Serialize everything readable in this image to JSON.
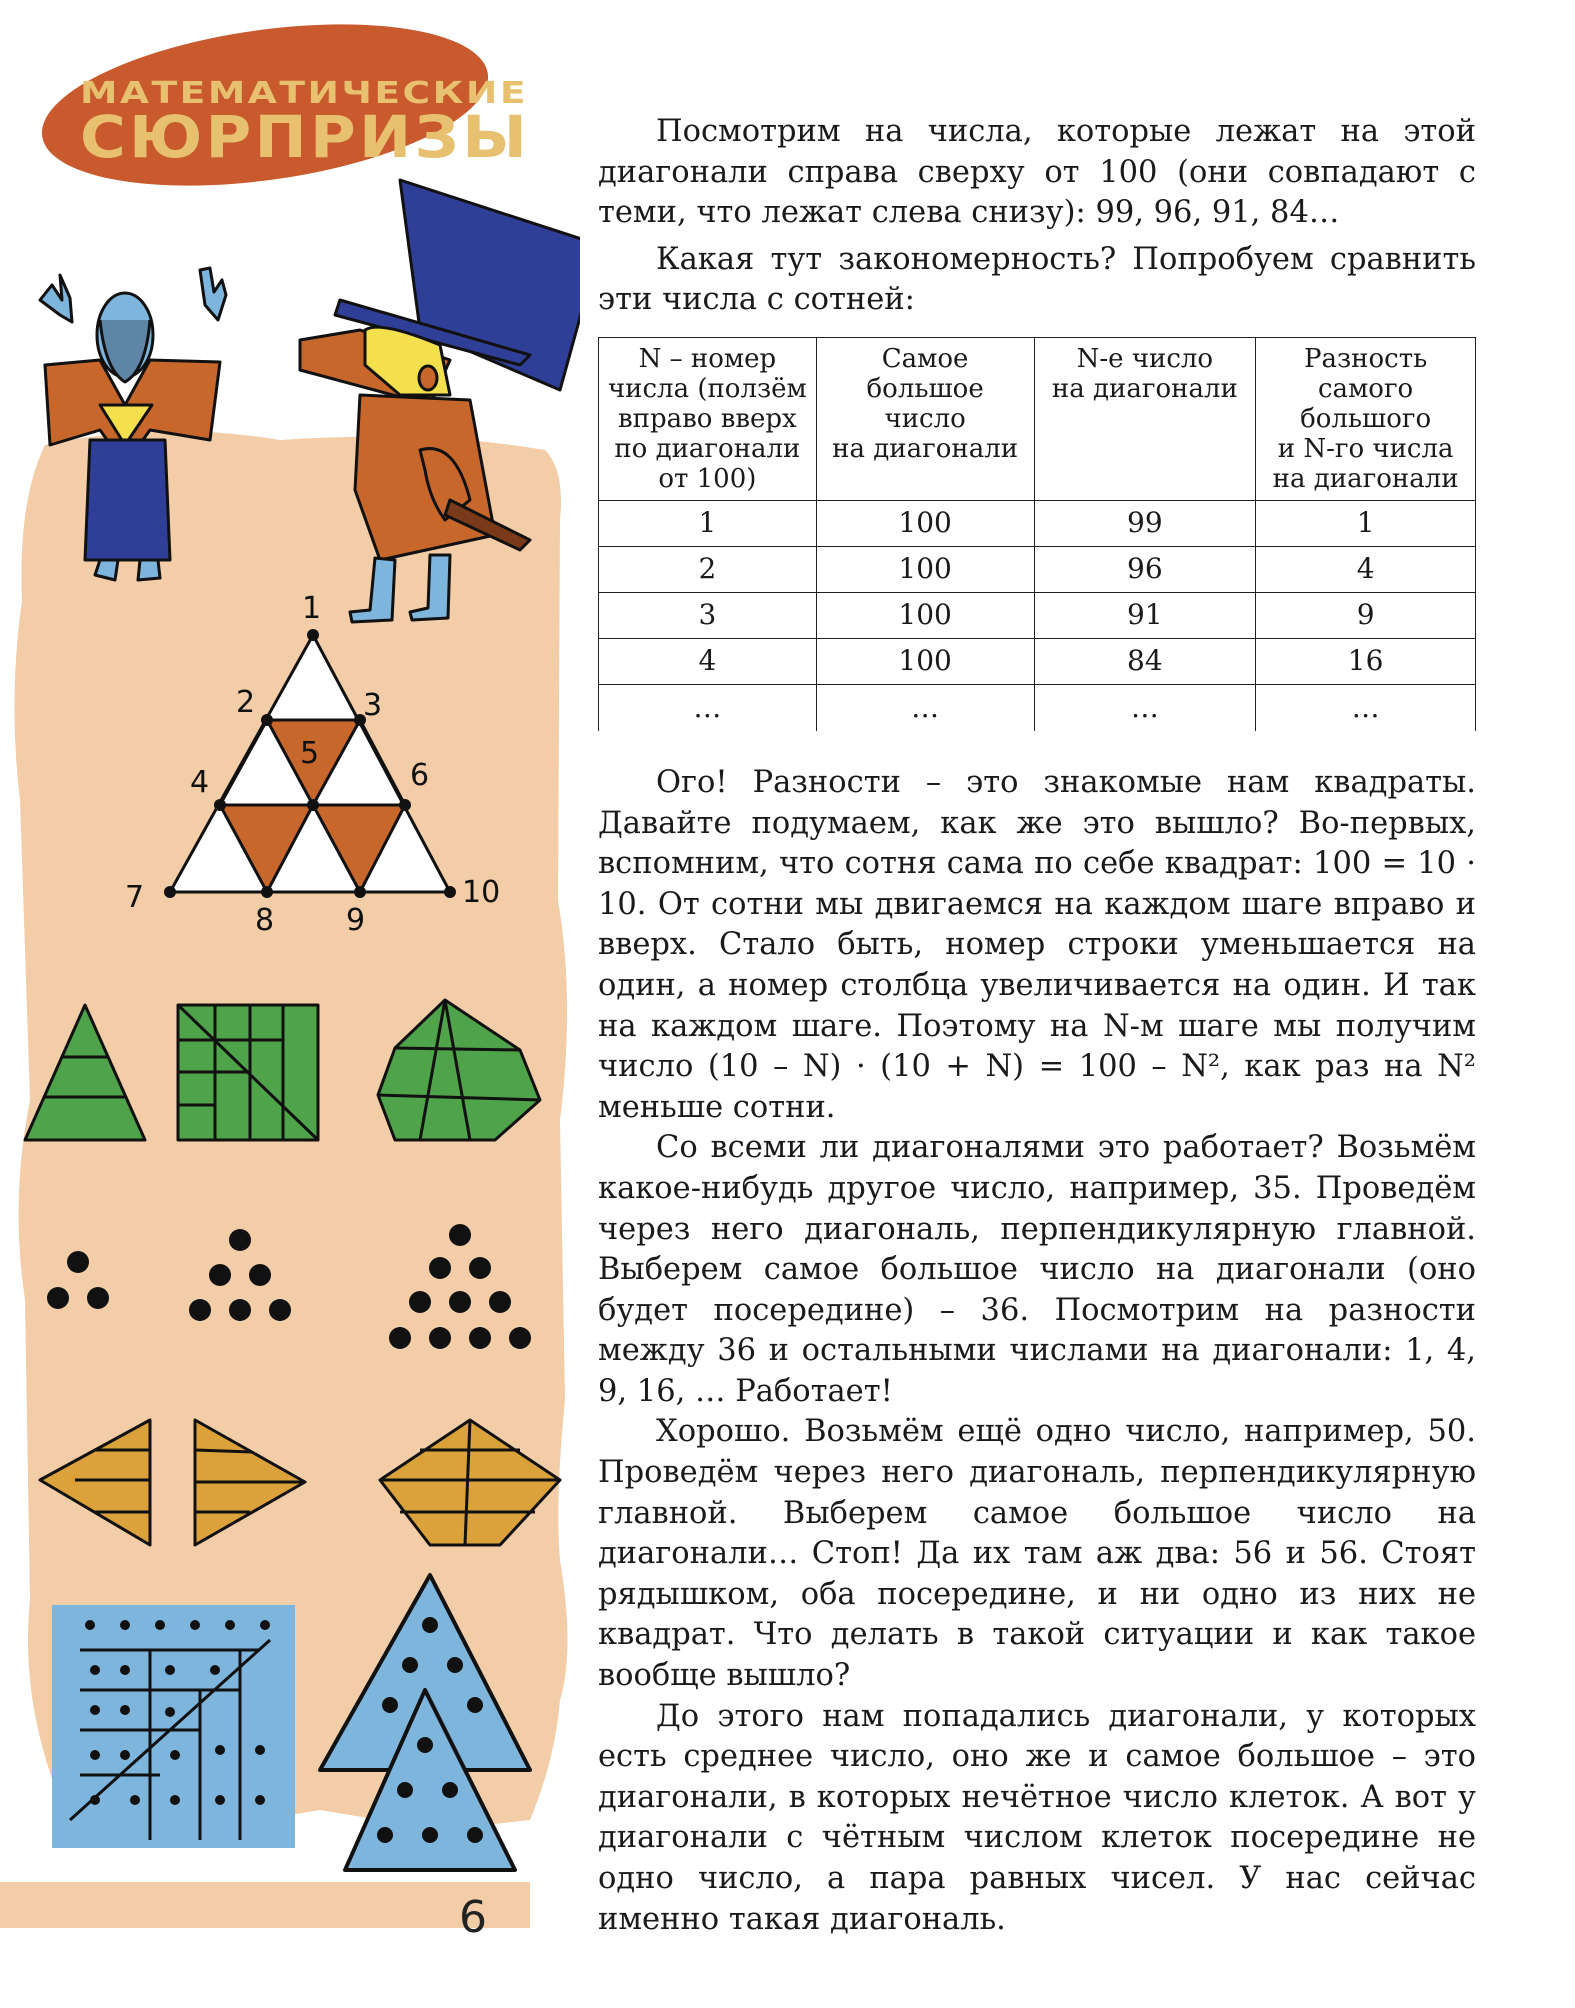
{
  "header": {
    "line1": "МАТЕМАТИЧЕСКИЕ",
    "line2": "СЮРПРИЗЫ"
  },
  "figure_labels": [
    "1",
    "2",
    "3",
    "4",
    "5",
    "6",
    "7",
    "8",
    "9",
    "10"
  ],
  "paragraphs": {
    "p1": "Посмотрим на числа, которые лежат на этой диагонали справа сверху от 100 (они совпадают с теми, что лежат слева снизу): 99, 96, 91, 84…",
    "p2": "Какая тут закономерность? Попробуем сравнить эти числа с сотней:",
    "p3": "Ого! Разности – это знакомые нам квадраты. Давайте подумаем, как же это вышло? Во-первых, вспомним, что сотня сама по себе квадрат: 100 = 10 · 10. От сотни мы двигаемся на каждом шаге вправо и вверх. Стало быть, номер строки уменьшается на один, а номер столбца увеличивается на один. И так на каждом шаге. Поэтому на N-м шаге мы получим число (10 – N) · (10 + N) = 100 – N², как раз на N² меньше сотни.",
    "p4": "Со всеми ли диагоналями это работает? Возьмём какое-нибудь другое число, например, 35. Проведём через него диагональ, перпендикулярную главной. Выберем самое большое число на диагонали (оно будет посередине) – 36. Посмотрим на разности между 36 и остальными числами на диагонали: 1, 4, 9, 16, … Работает!",
    "p5": "Хорошо. Возьмём ещё одно число, например, 50. Проведём через него диагональ, перпендикулярную главной. Выберем самое большое число на диагонали… Стоп! Да их там аж два: 56 и 56. Стоят рядышком, оба посередине, и ни одно из них не квадрат. Что делать в такой ситуации и как такое вообще вышло?",
    "p6": "До этого нам попадались диагонали, у которых есть среднее число, оно же и самое большое – это диагонали, в которых нечётное число клеток. А вот у диагонали с чётным числом клеток посередине не одно число, а пара равных чисел. У нас сейчас именно такая диагональ."
  },
  "table": {
    "headers": [
      [
        "N – номер",
        "числа (ползём",
        "вправо вверх",
        "по диагонали",
        "от 100)"
      ],
      [
        "Самое",
        "большое",
        "число",
        "на диагонали"
      ],
      [
        "N-е число",
        "на диагонали"
      ],
      [
        "Разность",
        "самого",
        "большого",
        "и N-го числа",
        "на диагонали"
      ]
    ],
    "rows": [
      [
        "1",
        "100",
        "99",
        "1"
      ],
      [
        "2",
        "100",
        "96",
        "4"
      ],
      [
        "3",
        "100",
        "91",
        "9"
      ],
      [
        "4",
        "100",
        "84",
        "16"
      ],
      [
        "…",
        "…",
        "…",
        "…"
      ]
    ]
  },
  "page_number": "6",
  "colors": {
    "logo_blob": "#c85a2e",
    "background_blob": "#f2cda8",
    "green": "#4fa34a",
    "mustard": "#dba13a",
    "light_blue": "#7db5dd",
    "orange": "#c8672c",
    "dark_blue": "#2f3f97"
  }
}
